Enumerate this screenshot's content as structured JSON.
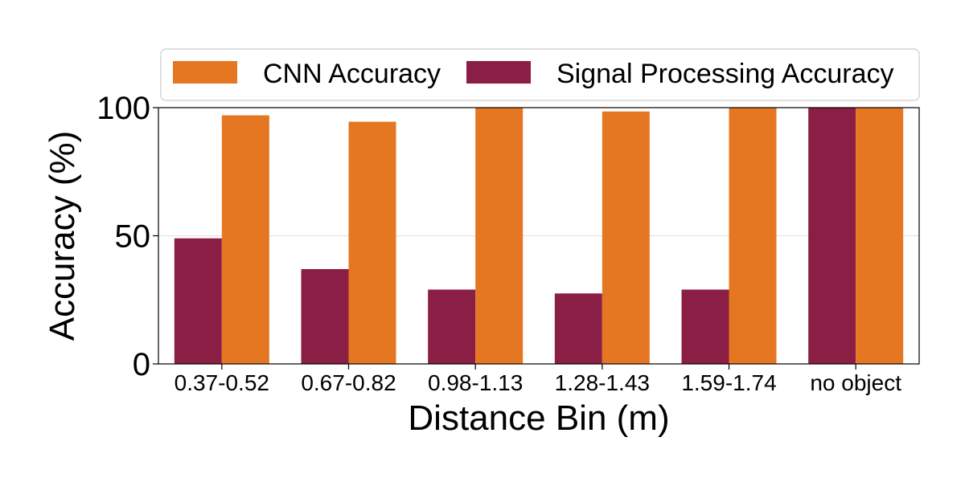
{
  "chart_data": {
    "type": "bar",
    "categories": [
      "0.37-0.52",
      "0.67-0.82",
      "0.98-1.13",
      "1.28-1.43",
      "1.59-1.74",
      "no object"
    ],
    "series": [
      {
        "name": "Signal Processing Accuracy",
        "color": "#8b1e44",
        "values": [
          49,
          37,
          29,
          27.5,
          29,
          100
        ]
      },
      {
        "name": "CNN Accuracy",
        "color": "#e57722",
        "values": [
          97,
          94.5,
          100,
          98.5,
          100,
          100
        ]
      }
    ],
    "legend_order": [
      "CNN Accuracy",
      "Signal Processing Accuracy"
    ],
    "legend_position": "top",
    "xlabel": "Distance Bin (m)",
    "ylabel": "Accuracy (%)",
    "ylim": [
      0,
      100
    ],
    "yticks": [
      0,
      50,
      100
    ],
    "grid": true
  }
}
